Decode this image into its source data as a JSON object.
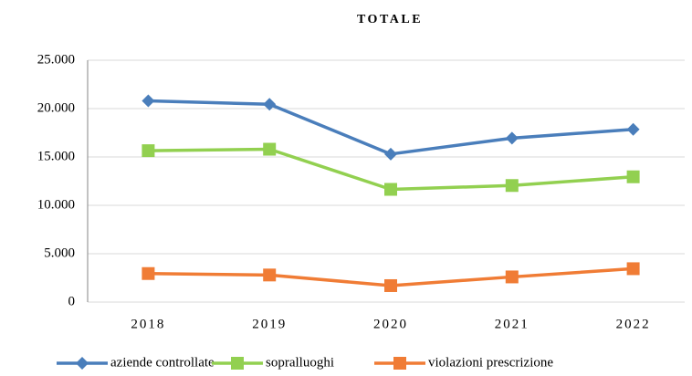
{
  "chart_data": {
    "type": "line",
    "title": "TOTALE",
    "categories": [
      "2018",
      "2019",
      "2020",
      "2021",
      "2022"
    ],
    "series": [
      {
        "name": "aziende controllate",
        "color": "#4a7ebb",
        "marker": "diamond",
        "values": [
          20800,
          20450,
          15300,
          16950,
          17850
        ]
      },
      {
        "name": "sopralluoghi",
        "color": "#92d050",
        "marker": "square",
        "values": [
          15650,
          15800,
          11650,
          12050,
          12950
        ]
      },
      {
        "name": "violazioni prescrizione",
        "color": "#f07c35",
        "marker": "square",
        "values": [
          2950,
          2800,
          1700,
          2600,
          3450
        ]
      }
    ],
    "ylim": [
      0,
      25000
    ],
    "yticks": [
      0,
      {
        "value": 5000,
        "label": "5.000"
      },
      {
        "value": 10000,
        "label": "10.000"
      },
      {
        "value": 15000,
        "label": "15.000"
      },
      {
        "value": 20000,
        "label": "20.000"
      },
      {
        "value": 25000,
        "label": "25.000"
      }
    ],
    "grid": true,
    "legend": "bottom"
  }
}
